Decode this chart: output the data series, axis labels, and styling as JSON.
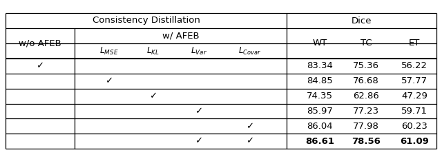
{
  "rows": [
    {
      "wo_afeb": true,
      "mse": false,
      "kl": false,
      "var": false,
      "covar": false,
      "wt": "83.34",
      "tc": "75.36",
      "et": "56.22",
      "bold": false
    },
    {
      "wo_afeb": false,
      "mse": true,
      "kl": false,
      "var": false,
      "covar": false,
      "wt": "84.85",
      "tc": "76.68",
      "et": "57.77",
      "bold": false
    },
    {
      "wo_afeb": false,
      "mse": false,
      "kl": true,
      "var": false,
      "covar": false,
      "wt": "74.35",
      "tc": "62.86",
      "et": "47.29",
      "bold": false
    },
    {
      "wo_afeb": false,
      "mse": false,
      "kl": false,
      "var": true,
      "covar": false,
      "wt": "85.97",
      "tc": "77.23",
      "et": "59.71",
      "bold": false
    },
    {
      "wo_afeb": false,
      "mse": false,
      "kl": false,
      "var": false,
      "covar": true,
      "wt": "86.04",
      "tc": "77.98",
      "et": "60.23",
      "bold": false
    },
    {
      "wo_afeb": false,
      "mse": false,
      "kl": false,
      "var": true,
      "covar": true,
      "wt": "86.61",
      "tc": "78.56",
      "et": "61.09",
      "bold": true
    }
  ],
  "bg_color": "#ffffff",
  "text_color": "#000000",
  "line_color": "#000000",
  "font_size": 9.5,
  "check_mark": "✓",
  "col_header1_cd": "Consistency Distillation",
  "col_header1_dice": "Dice",
  "col_header2_wo": "w/o AFEB",
  "col_header2_afeb": "w/ AFEB",
  "col_header3_wt": "WT",
  "col_header3_tc": "TC",
  "col_header3_et": "ET"
}
